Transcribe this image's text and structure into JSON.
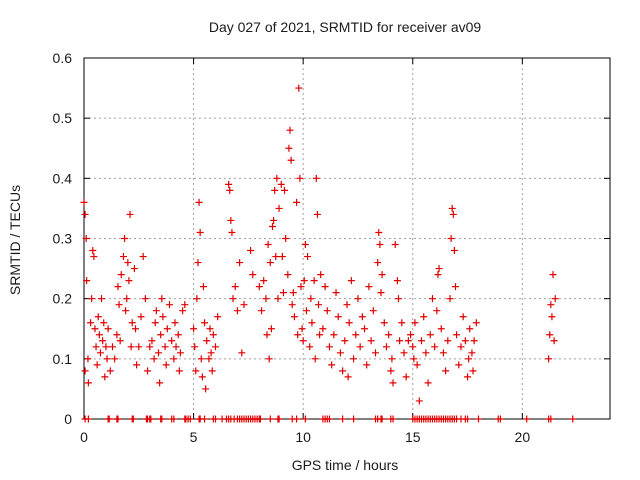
{
  "chart_data": {
    "type": "scatter",
    "title": "Day 027 of 2021, SRMTID for receiver av09",
    "xlabel": "GPS time / hours",
    "ylabel": "SRMTID / TECUs",
    "xlim": [
      0,
      24
    ],
    "ylim": [
      0,
      0.6
    ],
    "xticks": [
      0,
      5,
      10,
      15,
      20
    ],
    "xtick_labels": [
      "0",
      "5",
      "10",
      "15",
      "20"
    ],
    "yticks": [
      0,
      0.1,
      0.2,
      0.3,
      0.4,
      0.5,
      0.6
    ],
    "ytick_labels": [
      "0",
      "0.1",
      "0.2",
      "0.3",
      "0.4",
      "0.5",
      "0.6"
    ],
    "grid": true,
    "marker": "+",
    "color": "#e00000",
    "series": [
      {
        "name": "SRMTID",
        "points": [
          [
            0.0,
            0.36
          ],
          [
            0.05,
            0.34
          ],
          [
            0.05,
            0.08
          ],
          [
            0.1,
            0.3
          ],
          [
            0.12,
            0.23
          ],
          [
            0.18,
            0.1
          ],
          [
            0.2,
            0.06
          ],
          [
            0.3,
            0.16
          ],
          [
            0.35,
            0.2
          ],
          [
            0.4,
            0.28
          ],
          [
            0.45,
            0.27
          ],
          [
            0.5,
            0.15
          ],
          [
            0.55,
            0.12
          ],
          [
            0.6,
            0.09
          ],
          [
            0.65,
            0.17
          ],
          [
            0.7,
            0.14
          ],
          [
            0.75,
            0.11
          ],
          [
            0.8,
            0.2
          ],
          [
            0.85,
            0.13
          ],
          [
            0.9,
            0.16
          ],
          [
            0.95,
            0.07
          ],
          [
            1.0,
            0.12
          ],
          [
            1.05,
            0.1
          ],
          [
            1.1,
            0.15
          ],
          [
            1.2,
            0.08
          ],
          [
            1.3,
            0.12
          ],
          [
            1.4,
            0.1
          ],
          [
            1.5,
            0.14
          ],
          [
            1.55,
            0.22
          ],
          [
            1.6,
            0.19
          ],
          [
            1.65,
            0.13
          ],
          [
            1.7,
            0.24
          ],
          [
            1.8,
            0.27
          ],
          [
            1.85,
            0.3
          ],
          [
            1.9,
            0.18
          ],
          [
            1.95,
            0.2
          ],
          [
            2.0,
            0.26
          ],
          [
            2.05,
            0.23
          ],
          [
            2.1,
            0.34
          ],
          [
            2.15,
            0.12
          ],
          [
            2.2,
            0.16
          ],
          [
            2.3,
            0.25
          ],
          [
            2.35,
            0.15
          ],
          [
            2.4,
            0.09
          ],
          [
            2.5,
            0.12
          ],
          [
            2.6,
            0.17
          ],
          [
            2.7,
            0.27
          ],
          [
            2.8,
            0.2
          ],
          [
            2.9,
            0.08
          ],
          [
            3.0,
            0.12
          ],
          [
            3.1,
            0.13
          ],
          [
            3.2,
            0.1
          ],
          [
            3.25,
            0.16
          ],
          [
            3.3,
            0.18
          ],
          [
            3.4,
            0.11
          ],
          [
            3.45,
            0.06
          ],
          [
            3.5,
            0.14
          ],
          [
            3.55,
            0.2
          ],
          [
            3.6,
            0.17
          ],
          [
            3.7,
            0.12
          ],
          [
            3.75,
            0.09
          ],
          [
            3.8,
            0.15
          ],
          [
            3.9,
            0.19
          ],
          [
            4.0,
            0.13
          ],
          [
            4.1,
            0.1
          ],
          [
            4.15,
            0.16
          ],
          [
            4.2,
            0.12
          ],
          [
            4.3,
            0.14
          ],
          [
            4.35,
            0.08
          ],
          [
            4.4,
            0.11
          ],
          [
            4.5,
            0.18
          ],
          [
            4.6,
            0.19
          ],
          [
            5.0,
            0.15
          ],
          [
            5.05,
            0.12
          ],
          [
            5.1,
            0.08
          ],
          [
            5.15,
            0.2
          ],
          [
            5.2,
            0.26
          ],
          [
            5.25,
            0.36
          ],
          [
            5.3,
            0.31
          ],
          [
            5.35,
            0.1
          ],
          [
            5.4,
            0.07
          ],
          [
            5.45,
            0.22
          ],
          [
            5.5,
            0.16
          ],
          [
            5.55,
            0.05
          ],
          [
            5.6,
            0.13
          ],
          [
            5.7,
            0.1
          ],
          [
            5.75,
            0.15
          ],
          [
            5.8,
            0.11
          ],
          [
            5.85,
            0.08
          ],
          [
            5.9,
            0.14
          ],
          [
            6.0,
            0.12
          ],
          [
            6.1,
            0.17
          ],
          [
            6.6,
            0.39
          ],
          [
            6.65,
            0.38
          ],
          [
            6.7,
            0.33
          ],
          [
            6.75,
            0.31
          ],
          [
            6.8,
            0.2
          ],
          [
            6.9,
            0.22
          ],
          [
            7.0,
            0.18
          ],
          [
            7.1,
            0.26
          ],
          [
            7.2,
            0.11
          ],
          [
            7.3,
            0.19
          ],
          [
            7.6,
            0.28
          ],
          [
            7.7,
            0.24
          ],
          [
            8.0,
            0.22
          ],
          [
            8.1,
            0.18
          ],
          [
            8.2,
            0.23
          ],
          [
            8.3,
            0.2
          ],
          [
            8.35,
            0.14
          ],
          [
            8.4,
            0.29
          ],
          [
            8.45,
            0.1
          ],
          [
            8.5,
            0.26
          ],
          [
            8.55,
            0.15
          ],
          [
            8.6,
            0.32
          ],
          [
            8.65,
            0.33
          ],
          [
            8.7,
            0.38
          ],
          [
            8.75,
            0.27
          ],
          [
            8.8,
            0.4
          ],
          [
            8.85,
            0.2
          ],
          [
            8.9,
            0.35
          ],
          [
            9.0,
            0.39
          ],
          [
            9.05,
            0.27
          ],
          [
            9.1,
            0.21
          ],
          [
            9.15,
            0.38
          ],
          [
            9.2,
            0.3
          ],
          [
            9.3,
            0.24
          ],
          [
            9.35,
            0.45
          ],
          [
            9.4,
            0.48
          ],
          [
            9.45,
            0.43
          ],
          [
            9.5,
            0.19
          ],
          [
            9.55,
            0.21
          ],
          [
            9.6,
            0.17
          ],
          [
            9.7,
            0.36
          ],
          [
            9.75,
            0.14
          ],
          [
            9.8,
            0.55
          ],
          [
            9.85,
            0.4
          ],
          [
            9.9,
            0.22
          ],
          [
            9.95,
            0.15
          ],
          [
            10.0,
            0.13
          ],
          [
            10.05,
            0.23
          ],
          [
            10.1,
            0.29
          ],
          [
            10.15,
            0.18
          ],
          [
            10.2,
            0.27
          ],
          [
            10.3,
            0.12
          ],
          [
            10.35,
            0.2
          ],
          [
            10.4,
            0.16
          ],
          [
            10.5,
            0.23
          ],
          [
            10.55,
            0.1
          ],
          [
            10.6,
            0.4
          ],
          [
            10.65,
            0.34
          ],
          [
            10.7,
            0.19
          ],
          [
            10.75,
            0.14
          ],
          [
            10.8,
            0.24
          ],
          [
            10.9,
            0.15
          ],
          [
            11.0,
            0.22
          ],
          [
            11.1,
            0.18
          ],
          [
            11.2,
            0.12
          ],
          [
            11.3,
            0.09
          ],
          [
            11.4,
            0.14
          ],
          [
            11.5,
            0.21
          ],
          [
            11.6,
            0.17
          ],
          [
            11.7,
            0.11
          ],
          [
            11.8,
            0.08
          ],
          [
            11.9,
            0.13
          ],
          [
            12.0,
            0.19
          ],
          [
            12.05,
            0.07
          ],
          [
            12.1,
            0.16
          ],
          [
            12.2,
            0.23
          ],
          [
            12.3,
            0.1
          ],
          [
            12.4,
            0.14
          ],
          [
            12.5,
            0.2
          ],
          [
            12.6,
            0.12
          ],
          [
            12.7,
            0.17
          ],
          [
            12.8,
            0.15
          ],
          [
            12.9,
            0.09
          ],
          [
            13.0,
            0.22
          ],
          [
            13.1,
            0.13
          ],
          [
            13.2,
            0.18
          ],
          [
            13.3,
            0.11
          ],
          [
            13.4,
            0.26
          ],
          [
            13.45,
            0.31
          ],
          [
            13.5,
            0.29
          ],
          [
            13.55,
            0.21
          ],
          [
            13.6,
            0.24
          ],
          [
            13.7,
            0.16
          ],
          [
            13.8,
            0.12
          ],
          [
            13.9,
            0.14
          ],
          [
            14.0,
            0.08
          ],
          [
            14.05,
            0.1
          ],
          [
            14.1,
            0.06
          ],
          [
            14.2,
            0.29
          ],
          [
            14.3,
            0.23
          ],
          [
            14.35,
            0.2
          ],
          [
            14.4,
            0.13
          ],
          [
            14.5,
            0.16
          ],
          [
            14.6,
            0.11
          ],
          [
            14.7,
            0.07
          ],
          [
            14.8,
            0.13
          ],
          [
            14.9,
            0.14
          ],
          [
            15.0,
            0.12
          ],
          [
            15.05,
            0.1
          ],
          [
            15.1,
            0.16
          ],
          [
            15.2,
            0.09
          ],
          [
            15.3,
            0.03
          ],
          [
            15.4,
            0.13
          ],
          [
            15.5,
            0.17
          ],
          [
            15.6,
            0.11
          ],
          [
            15.7,
            0.06
          ],
          [
            15.8,
            0.14
          ],
          [
            15.9,
            0.2
          ],
          [
            16.0,
            0.12
          ],
          [
            16.1,
            0.18
          ],
          [
            16.15,
            0.24
          ],
          [
            16.2,
            0.25
          ],
          [
            16.3,
            0.15
          ],
          [
            16.4,
            0.11
          ],
          [
            16.5,
            0.08
          ],
          [
            16.6,
            0.13
          ],
          [
            16.7,
            0.2
          ],
          [
            16.75,
            0.3
          ],
          [
            16.8,
            0.35
          ],
          [
            16.85,
            0.34
          ],
          [
            16.9,
            0.28
          ],
          [
            16.95,
            0.22
          ],
          [
            17.0,
            0.14
          ],
          [
            17.1,
            0.09
          ],
          [
            17.2,
            0.12
          ],
          [
            17.3,
            0.17
          ],
          [
            17.4,
            0.13
          ],
          [
            17.5,
            0.07
          ],
          [
            17.55,
            0.1
          ],
          [
            17.6,
            0.15
          ],
          [
            17.7,
            0.11
          ],
          [
            17.75,
            0.08
          ],
          [
            17.8,
            0.13
          ],
          [
            17.9,
            0.16
          ],
          [
            21.2,
            0.1
          ],
          [
            21.25,
            0.14
          ],
          [
            21.3,
            0.19
          ],
          [
            21.35,
            0.17
          ],
          [
            21.4,
            0.24
          ],
          [
            21.45,
            0.13
          ],
          [
            21.5,
            0.2
          ]
        ],
        "zero_times": [
          0.05,
          0.2,
          1.1,
          1.15,
          1.5,
          1.55,
          2.2,
          2.25,
          2.85,
          2.9,
          3.0,
          3.05,
          3.5,
          3.55,
          4.0,
          4.1,
          4.6,
          4.65,
          4.75,
          4.85,
          5.25,
          5.3,
          5.5,
          5.9,
          6.0,
          6.3,
          6.5,
          6.6,
          6.7,
          6.85,
          7.0,
          7.1,
          7.2,
          7.3,
          7.4,
          7.5,
          7.6,
          7.7,
          7.8,
          7.9,
          8.0,
          8.05,
          8.5,
          8.85,
          8.9,
          9.5,
          9.7,
          10.1,
          10.9,
          11.0,
          11.1,
          11.2,
          11.8,
          12.3,
          13.3,
          13.4,
          13.55,
          13.6,
          14.0,
          14.1,
          15.0,
          15.1,
          15.2,
          15.3,
          15.4,
          15.5,
          15.6,
          15.7,
          15.8,
          15.9,
          16.0,
          16.1,
          16.2,
          16.3,
          16.4,
          16.5,
          16.6,
          16.7,
          16.8,
          16.9,
          17.0,
          17.2,
          17.4,
          17.5,
          18.0,
          18.9,
          19.0,
          20.2,
          21.2,
          21.3,
          22.3
        ]
      }
    ]
  }
}
